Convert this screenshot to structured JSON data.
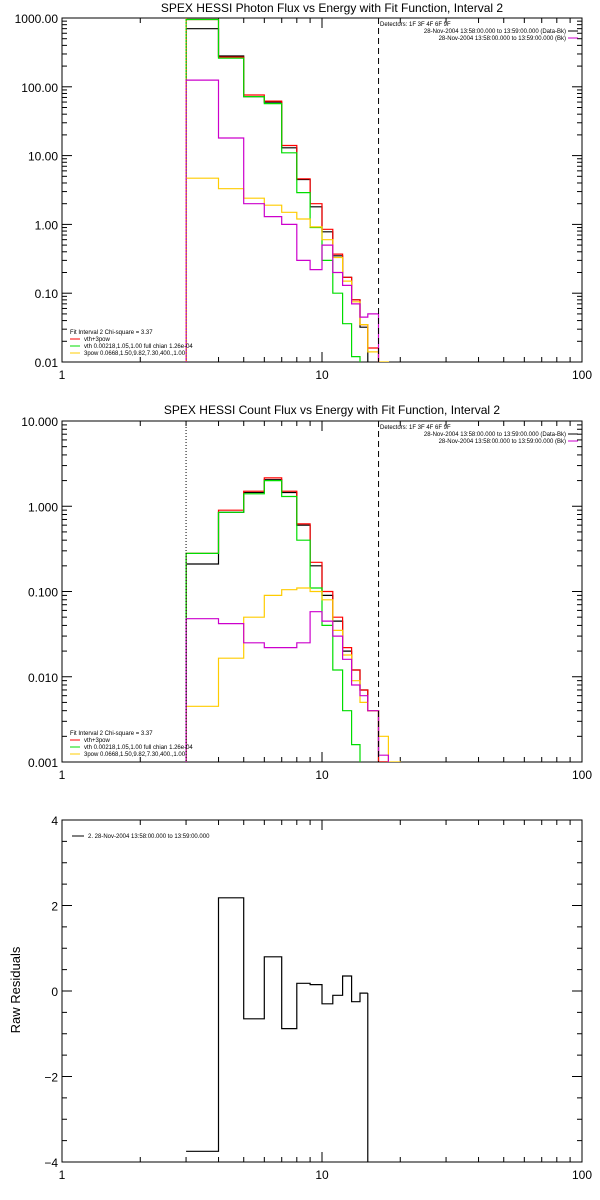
{
  "chart_data": [
    {
      "type": "line",
      "step": true,
      "title": "SPEX HESSI Photon Flux vs Energy with Fit Function, Interval 2",
      "xscale": "log",
      "yscale": "log",
      "xlim": [
        1,
        100
      ],
      "ylim": [
        0.01,
        1000
      ],
      "xticks": [
        "1",
        "10",
        "100"
      ],
      "yticks": [
        "0.01",
        "0.10",
        "1.00",
        "10.00",
        "100.00",
        "1000.00"
      ],
      "legend_placement": "top-right",
      "legend_header": "Detectors: 1F 3F 4F 6F 9F",
      "legend_entries": [
        {
          "label": "28-Nov-2004 13:58:00.000 to 13:59:00.000 (Data-Bk)",
          "color": "#000000"
        },
        {
          "label": "28-Nov-2004 13:58:00.000 to 13:59:00.000 (Bk)",
          "color": "#cc00cc"
        }
      ],
      "fit_legend_title": "Fit Interval 2  Chi-square = 3.37",
      "fit_legend_entries": [
        {
          "label": "vth+3pow",
          "color": "#ff0000"
        },
        {
          "label": "vth 0.00218,1.05,1.00  full chian 1.26e-04",
          "color": "#00dd00"
        },
        {
          "label": "3pow 0.0668,1.50,9.82,7.30,400.,1.00",
          "color": "#ffcc00"
        }
      ],
      "vlines": [
        {
          "x": 3.0,
          "style": "dotted",
          "color": "#ff8800"
        },
        {
          "x": 16.5,
          "style": "dashed",
          "color": "#000000"
        }
      ],
      "bin_edges": [
        3.0,
        4.0,
        5.0,
        6.0,
        7.0,
        8.0,
        9.0,
        10.0,
        11.0,
        12.0,
        13.0,
        14.0,
        15.0,
        16.5,
        18.0
      ],
      "series": [
        {
          "name": "Data-Bk",
          "color": "#000000",
          "values": [
            700,
            280,
            72,
            60,
            13,
            4.5,
            1.8,
            0.78,
            0.35,
            0.17,
            0.08,
            0.032,
            null,
            null
          ]
        },
        {
          "name": "vth+3pow",
          "color": "#ff0000",
          "values": [
            950,
            270,
            76,
            62,
            14,
            4.6,
            2.0,
            0.85,
            0.37,
            0.17,
            0.08,
            0.035,
            0.016,
            null
          ]
        },
        {
          "name": "vth",
          "color": "#00dd00",
          "values": [
            950,
            260,
            72,
            57,
            11,
            2.9,
            0.9,
            0.3,
            0.1,
            0.036,
            0.012,
            null,
            null,
            null
          ]
        },
        {
          "name": "3pow",
          "color": "#ffcc00",
          "values": [
            4.7,
            3.3,
            2.4,
            1.9,
            1.5,
            1.2,
            0.92,
            0.6,
            0.33,
            0.15,
            0.075,
            0.035,
            0.014,
            0.01
          ]
        },
        {
          "name": "Bk",
          "color": "#cc00cc",
          "values": [
            125,
            18,
            2.0,
            1.3,
            1.0,
            0.3,
            0.22,
            0.5,
            0.2,
            0.13,
            0.07,
            0.045,
            0.05,
            null
          ]
        }
      ]
    },
    {
      "type": "line",
      "step": true,
      "title": "SPEX HESSI Count Flux vs Energy with Fit Function, Interval 2",
      "xscale": "log",
      "yscale": "log",
      "xlim": [
        1,
        100
      ],
      "ylim": [
        0.001,
        10
      ],
      "xticks": [
        "1",
        "10",
        "100"
      ],
      "yticks": [
        "0.001",
        "0.010",
        "0.100",
        "1.000",
        "10.000"
      ],
      "legend_placement": "top-right",
      "legend_header": "Detectors: 1F 3F 4F 6F 9F",
      "legend_entries": [
        {
          "label": "28-Nov-2004 13:58:00.000 to 13:59:00.000 (Data-Bk)",
          "color": "#000000"
        },
        {
          "label": "28-Nov-2004 13:58:00.000 to 13:59:00.000 (Bk)",
          "color": "#cc00cc"
        }
      ],
      "fit_legend_title": "Fit Interval 2  Chi-square = 3.37",
      "fit_legend_entries": [
        {
          "label": "vth+3pow",
          "color": "#ff0000"
        },
        {
          "label": "vth 0.00218,1.05,1.00  full chian 1.26e-04",
          "color": "#00dd00"
        },
        {
          "label": "3pow 0.0668,1.50,9.82,7.30,400.,1.00",
          "color": "#ffcc00"
        }
      ],
      "vlines": [
        {
          "x": 3.0,
          "style": "dotted",
          "color": "#000000"
        },
        {
          "x": 16.5,
          "style": "dashed",
          "color": "#000000"
        }
      ],
      "bin_edges": [
        3.0,
        4.0,
        5.0,
        6.0,
        7.0,
        8.0,
        9.0,
        10.0,
        11.0,
        12.0,
        13.0,
        14.0,
        15.0,
        16.5,
        18.0,
        20.0
      ],
      "series": [
        {
          "name": "Data-Bk",
          "color": "#000000",
          "values": [
            0.21,
            0.85,
            1.45,
            2.05,
            1.45,
            0.6,
            0.2,
            0.09,
            0.045,
            0.02,
            0.012,
            0.007,
            0.004,
            0.001,
            null
          ]
        },
        {
          "name": "vth+3pow",
          "color": "#ff0000",
          "values": [
            0.28,
            0.9,
            1.5,
            2.15,
            1.5,
            0.62,
            0.22,
            0.1,
            0.05,
            0.022,
            0.012,
            0.007,
            0.004,
            0.001,
            null
          ]
        },
        {
          "name": "vth",
          "color": "#00dd00",
          "values": [
            0.28,
            0.85,
            1.4,
            2.0,
            1.3,
            0.4,
            0.11,
            0.04,
            0.012,
            0.004,
            0.0016,
            null,
            null,
            null,
            null
          ]
        },
        {
          "name": "3pow",
          "color": "#ffcc00",
          "values": [
            0.0045,
            0.0165,
            0.05,
            0.09,
            0.105,
            0.11,
            0.1,
            0.08,
            0.035,
            0.018,
            0.009,
            0.005,
            0.004,
            0.002,
            0.001
          ]
        },
        {
          "name": "Bk",
          "color": "#cc00cc",
          "values": [
            0.048,
            0.042,
            0.025,
            0.022,
            0.022,
            0.025,
            0.058,
            0.045,
            0.03,
            0.016,
            0.008,
            0.006,
            0.004,
            0.0012,
            null
          ]
        }
      ]
    },
    {
      "type": "line",
      "step": true,
      "title": "",
      "xscale": "log",
      "xlim": [
        1,
        100
      ],
      "ylim": [
        -4,
        4
      ],
      "xticks": [
        "1",
        "10",
        "100"
      ],
      "yticks": [
        "−4",
        "−2",
        "0",
        "2",
        "4"
      ],
      "ylabel": "Raw Residuals",
      "legend_placement": "top-left",
      "legend_entries": [
        {
          "label": "2. 28-Nov-2004 13:58:00.000 to 13:59:00.000",
          "color": "#000000"
        }
      ],
      "bin_edges": [
        3.0,
        4.0,
        5.0,
        6.0,
        7.0,
        8.0,
        9.0,
        10.0,
        11.0,
        12.0,
        13.0,
        14.0,
        15.0,
        16.5
      ],
      "series": [
        {
          "name": "2. 28-Nov-2004 13:58:00.000 to 13:59:00.000",
          "color": "#000000",
          "values": [
            -3.75,
            2.18,
            -0.65,
            0.8,
            -0.88,
            0.18,
            0.15,
            -0.3,
            -0.1,
            0.35,
            -0.25,
            -0.05,
            null
          ]
        }
      ]
    }
  ]
}
